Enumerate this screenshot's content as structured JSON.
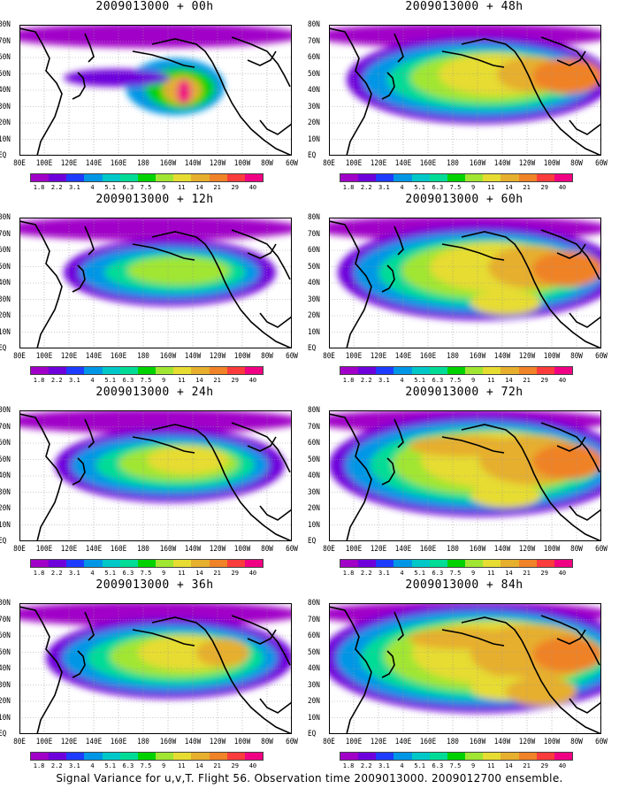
{
  "panels": [
    {
      "title": "2009013000 + 00h",
      "level": 0
    },
    {
      "title": "2009013000 + 48h",
      "level": 4
    },
    {
      "title": "2009013000 + 12h",
      "level": 1
    },
    {
      "title": "2009013000 + 60h",
      "level": 5
    },
    {
      "title": "2009013000 + 24h",
      "level": 2
    },
    {
      "title": "2009013000 + 72h",
      "level": 6
    },
    {
      "title": "2009013000 + 36h",
      "level": 3
    },
    {
      "title": "2009013000 + 84h",
      "level": 7
    }
  ],
  "lat_labels": [
    "80N",
    "70N",
    "60N",
    "50N",
    "40N",
    "30N",
    "20N",
    "10N",
    "EQ"
  ],
  "lon_labels": [
    "80E",
    "100E",
    "120E",
    "140E",
    "160E",
    "180",
    "160W",
    "140W",
    "120W",
    "100W",
    "80W",
    "60W"
  ],
  "colorbar": {
    "values": [
      "1.8",
      "2.2",
      "3.1",
      "4",
      "5.1",
      "6.3",
      "7.5",
      "9",
      "11",
      "14",
      "21",
      "29",
      "40"
    ],
    "colors": [
      "#a000c8",
      "#6e00dc",
      "#1e3cff",
      "#0096e6",
      "#00c8c8",
      "#00dc96",
      "#00d200",
      "#a0e632",
      "#e6dc32",
      "#e6af2d",
      "#f08228",
      "#fa3c3c",
      "#f00082"
    ]
  },
  "caption": "Signal Variance for u,v,T. Flight 56. Observation time 2009013000. 2009012700 ensemble."
}
